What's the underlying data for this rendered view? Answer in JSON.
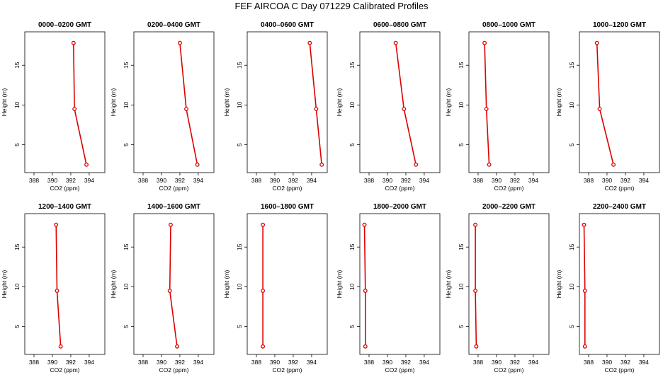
{
  "title": "FEF AIRCOA C  Day 071229  Calibrated Profiles",
  "colors": {
    "line": "#dd0000",
    "axis": "#000000"
  },
  "chart_data": {
    "type": "line",
    "xlabel": "CO2 (ppm)",
    "ylabel": "Height (m)",
    "xlim": [
      387,
      395.7
    ],
    "ylim": [
      1.5,
      19.2
    ],
    "xticks": [
      388,
      390,
      392,
      394
    ],
    "yticks": [
      5,
      10,
      15
    ],
    "heights": [
      17.8,
      9.5,
      2.5
    ],
    "panels": [
      {
        "title": "0000–0200 GMT",
        "co2": [
          392.3,
          392.4,
          393.7
        ]
      },
      {
        "title": "0200–0400 GMT",
        "co2": [
          392.0,
          392.7,
          393.9
        ]
      },
      {
        "title": "0400–0600 GMT",
        "co2": [
          393.8,
          394.5,
          395.1
        ]
      },
      {
        "title": "0600–0800 GMT",
        "co2": [
          390.9,
          391.8,
          393.1
        ]
      },
      {
        "title": "0800–1000 GMT",
        "co2": [
          388.7,
          388.9,
          389.2
        ]
      },
      {
        "title": "1000–1200 GMT",
        "co2": [
          388.9,
          389.2,
          390.7
        ]
      },
      {
        "title": "1200–1400 GMT",
        "co2": [
          390.4,
          390.5,
          390.9
        ]
      },
      {
        "title": "1400–1600 GMT",
        "co2": [
          391.0,
          390.9,
          391.7
        ]
      },
      {
        "title": "1600–1800 GMT",
        "co2": [
          388.7,
          388.7,
          388.7
        ]
      },
      {
        "title": "1800–2000 GMT",
        "co2": [
          387.5,
          387.6,
          387.6
        ]
      },
      {
        "title": "2000–2200 GMT",
        "co2": [
          387.7,
          387.7,
          387.8
        ]
      },
      {
        "title": "2200–2400 GMT",
        "co2": [
          387.5,
          387.6,
          387.6
        ]
      }
    ]
  }
}
